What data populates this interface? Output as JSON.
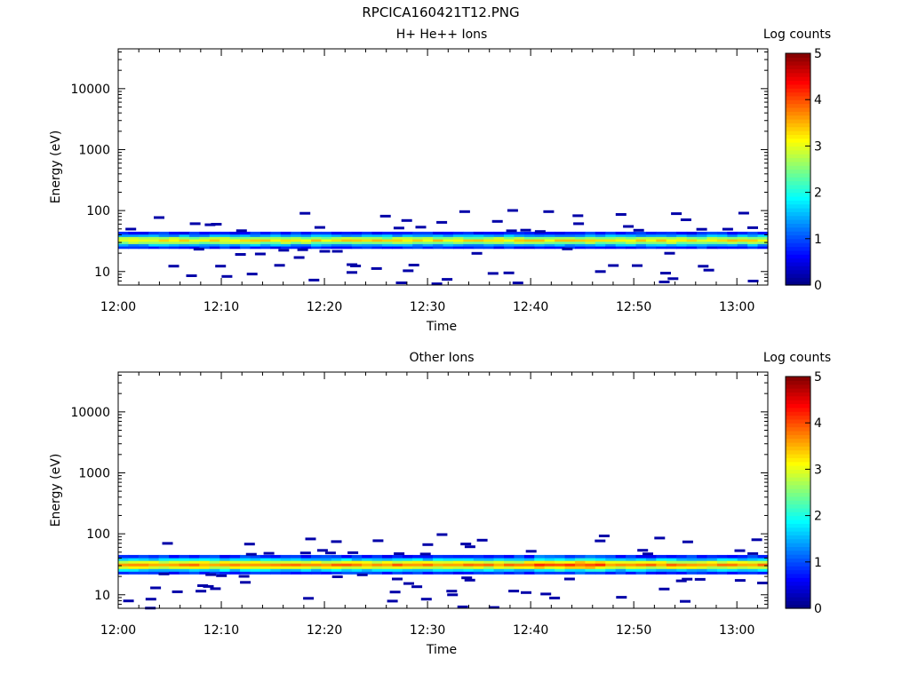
{
  "page_title": "RPCICA160421T12.PNG",
  "chart_data": [
    {
      "type": "heatmap",
      "title": "H+ He++ Ions",
      "xlabel": "Time",
      "ylabel": "Energy (eV)",
      "y_scale": "log",
      "ylim": [
        6,
        45000
      ],
      "xlim_minutes": [
        0,
        63
      ],
      "x_ticks": [
        "12:00",
        "12:10",
        "12:20",
        "12:30",
        "12:40",
        "12:50",
        "13:00"
      ],
      "y_ticks": [
        "10",
        "100",
        "1000",
        "10000"
      ],
      "colorbar": {
        "label": "Log counts",
        "range": [
          0,
          5
        ],
        "ticks": [
          "0",
          "1",
          "2",
          "3",
          "4",
          "5"
        ],
        "colormap": "jet"
      },
      "band": {
        "center_eV": 34,
        "low_eV": 24,
        "high_eV": 45,
        "peak_log_counts": 3.2
      },
      "sparse_points_log_counts": 0.2
    },
    {
      "type": "heatmap",
      "title": "Other Ions",
      "xlabel": "Time",
      "ylabel": "Energy (eV)",
      "y_scale": "log",
      "ylim": [
        6,
        45000
      ],
      "xlim_minutes": [
        0,
        63
      ],
      "x_ticks": [
        "12:00",
        "12:10",
        "12:20",
        "12:30",
        "12:40",
        "12:50",
        "13:00"
      ],
      "y_ticks": [
        "10",
        "100",
        "1000",
        "10000"
      ],
      "colorbar": {
        "label": "Log counts",
        "range": [
          0,
          5
        ],
        "ticks": [
          "0",
          "1",
          "2",
          "3",
          "4",
          "5"
        ],
        "colormap": "jet"
      },
      "band": {
        "center_eV": 32,
        "low_eV": 22,
        "high_eV": 45,
        "peak_log_counts": 3.7
      },
      "sparse_points_log_counts": 0.2
    }
  ]
}
